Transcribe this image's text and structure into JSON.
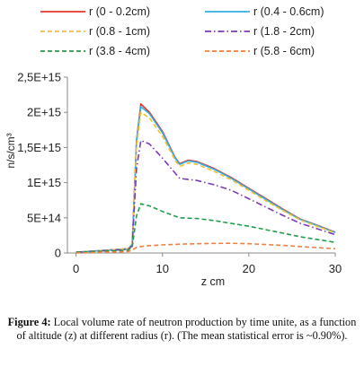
{
  "chart_data": {
    "type": "line",
    "xlabel": "z cm",
    "ylabel": "n/s/cm³",
    "xlim": [
      -1,
      30
    ],
    "ylim": [
      0,
      2500000000000000.0
    ],
    "xticks": [
      "0",
      "10",
      "20",
      "30"
    ],
    "yticks": [
      "0",
      "5E+14",
      "1E+15",
      "1,5E+15",
      "2E+15",
      "2,5E+15"
    ],
    "grid": false,
    "legend_position": "top",
    "series": [
      {
        "name": "r (0 - 0.2cm)",
        "color": "#e8332a",
        "style": "solid",
        "x": [
          0,
          6.0,
          6.5,
          7.0,
          7.5,
          8.5,
          10.0,
          11.5,
          12.0,
          13.0,
          14.0,
          16.0,
          18.0,
          20.0,
          22.0,
          24.0,
          26.0,
          28.0,
          30.0
        ],
        "y": [
          10000000000000.0,
          60000000000000.0,
          120000000000000.0,
          1600000000000000.0,
          2120000000000000.0,
          2000000000000000.0,
          1730000000000000.0,
          1350000000000000.0,
          1270000000000000.0,
          1320000000000000.0,
          1300000000000000.0,
          1200000000000000.0,
          1070000000000000.0,
          920000000000000.0,
          770000000000000.0,
          620000000000000.0,
          480000000000000.0,
          390000000000000.0,
          295000000000000.0
        ]
      },
      {
        "name": "r (0.4 - 0.6cm)",
        "color": "#35aee0",
        "style": "solid",
        "x": [
          0,
          6.0,
          6.5,
          7.0,
          7.5,
          8.5,
          10.0,
          11.5,
          12.0,
          13.0,
          14.0,
          16.0,
          18.0,
          20.0,
          22.0,
          24.0,
          26.0,
          28.0,
          30.0
        ],
        "y": [
          10000000000000.0,
          60000000000000.0,
          120000000000000.0,
          1580000000000000.0,
          2080000000000000.0,
          1980000000000000.0,
          1710000000000000.0,
          1340000000000000.0,
          1260000000000000.0,
          1310000000000000.0,
          1290000000000000.0,
          1190000000000000.0,
          1060000000000000.0,
          910000000000000.0,
          760000000000000.0,
          610000000000000.0,
          475000000000000.0,
          385000000000000.0,
          290000000000000.0
        ]
      },
      {
        "name": "r (0.8 - 1cm)",
        "color": "#f2c12e",
        "style": "dashed",
        "x": [
          0,
          6.0,
          6.5,
          7.0,
          7.5,
          8.5,
          10.0,
          11.5,
          12.0,
          13.0,
          14.0,
          16.0,
          18.0,
          20.0,
          22.0,
          24.0,
          26.0,
          28.0,
          30.0
        ],
        "y": [
          10000000000000.0,
          60000000000000.0,
          120000000000000.0,
          1520000000000000.0,
          2000000000000000.0,
          1920000000000000.0,
          1660000000000000.0,
          1310000000000000.0,
          1230000000000000.0,
          1280000000000000.0,
          1260000000000000.0,
          1160000000000000.0,
          1040000000000000.0,
          890000000000000.0,
          740000000000000.0,
          600000000000000.0,
          465000000000000.0,
          375000000000000.0,
          285000000000000.0
        ]
      },
      {
        "name": "r (1.8 - 2cm)",
        "color": "#7e3ab8",
        "style": "dashdot",
        "x": [
          0,
          6.0,
          6.5,
          7.0,
          7.5,
          8.5,
          10.0,
          11.5,
          12.0,
          14.0,
          16.0,
          18.0,
          20.0,
          22.0,
          24.0,
          26.0,
          28.0,
          30.0
        ],
        "y": [
          10000000000000.0,
          50000000000000.0,
          100000000000000.0,
          1200000000000000.0,
          1600000000000000.0,
          1550000000000000.0,
          1350000000000000.0,
          1130000000000000.0,
          1060000000000000.0,
          1030000000000000.0,
          970000000000000.0,
          890000000000000.0,
          770000000000000.0,
          650000000000000.0,
          530000000000000.0,
          420000000000000.0,
          340000000000000.0,
          260000000000000.0
        ]
      },
      {
        "name": "r (3.8 - 4cm)",
        "color": "#1f9e4a",
        "style": "dashed",
        "x": [
          0,
          6.0,
          6.5,
          7.0,
          7.5,
          8.5,
          10.0,
          12.0,
          14.0,
          16.0,
          18.0,
          20.0,
          22.0,
          24.0,
          26.0,
          28.0,
          30.0
        ],
        "y": [
          10000000000000.0,
          40000000000000.0,
          80000000000000.0,
          530000000000000.0,
          700000000000000.0,
          670000000000000.0,
          590000000000000.0,
          500000000000000.0,
          490000000000000.0,
          460000000000000.0,
          420000000000000.0,
          380000000000000.0,
          330000000000000.0,
          280000000000000.0,
          230000000000000.0,
          190000000000000.0,
          150000000000000.0
        ]
      },
      {
        "name": "r (5.8 - 6cm)",
        "color": "#f0803c",
        "style": "dashed",
        "x": [
          0,
          6.0,
          6.5,
          7.0,
          8.0,
          10.0,
          12.0,
          14.0,
          16.0,
          18.0,
          20.0,
          22.0,
          24.0,
          26.0,
          28.0,
          30.0
        ],
        "y": [
          0,
          20000000000000.0,
          40000000000000.0,
          80000000000000.0,
          100000000000000.0,
          115000000000000.0,
          125000000000000.0,
          132000000000000.0,
          137000000000000.0,
          138000000000000.0,
          132000000000000.0,
          120000000000000.0,
          107000000000000.0,
          90000000000000.0,
          75000000000000.0,
          60000000000000.0
        ]
      }
    ]
  },
  "caption": {
    "label": "Figure 4:",
    "text": "Local volume rate of neutron production by time unite, as a function of altitude (z) at different radius (r). (The mean statistical error is ~0.90%)."
  }
}
